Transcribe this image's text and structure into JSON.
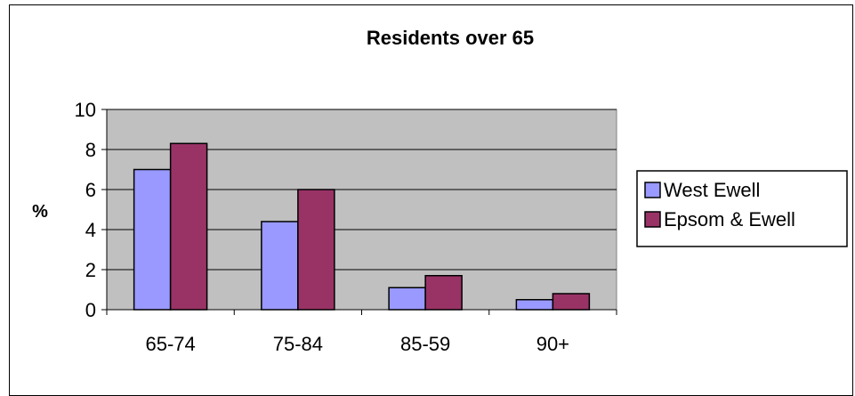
{
  "chart_data": {
    "type": "bar",
    "title": "Residents over 65",
    "xlabel": "",
    "ylabel": "%",
    "ylim": [
      0,
      10
    ],
    "yticks": [
      0,
      2,
      4,
      6,
      8,
      10
    ],
    "categories": [
      "65-74",
      "75-84",
      "85-59",
      "90+"
    ],
    "series": [
      {
        "name": "West Ewell",
        "values": [
          7.0,
          4.4,
          1.1,
          0.5
        ],
        "color": "#9999ff"
      },
      {
        "name": "Epsom & Ewell",
        "values": [
          8.3,
          6.0,
          1.7,
          0.8
        ],
        "color": "#993366"
      }
    ],
    "plot_background": "#c0c0c0",
    "grid": true,
    "legend_position": "right"
  }
}
